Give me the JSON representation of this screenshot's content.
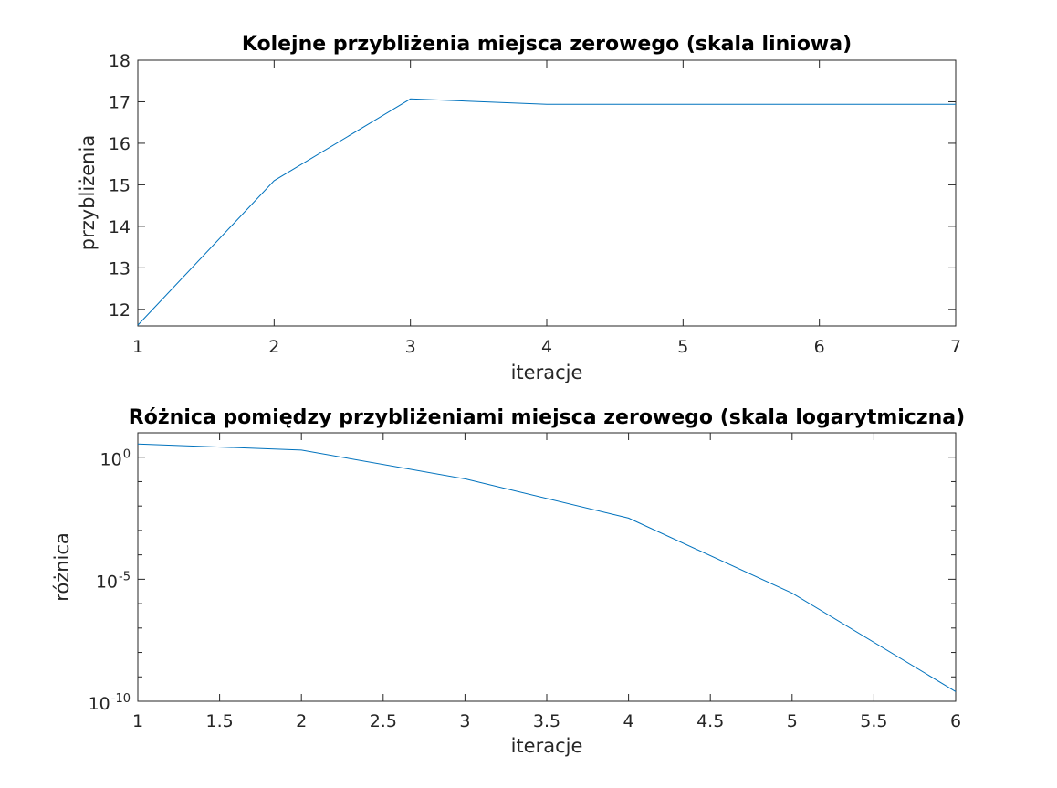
{
  "chart_data": [
    {
      "type": "line",
      "title": "Kolejne przybliżenia miejsca zerowego (skala liniowa)",
      "xlabel": "iteracje",
      "ylabel": "przybliżenia",
      "xlim": [
        1,
        7
      ],
      "ylim": [
        11.6,
        18
      ],
      "yscale": "linear",
      "grid": false,
      "x_ticks": [
        "1",
        "2",
        "3",
        "4",
        "5",
        "6",
        "7"
      ],
      "y_ticks": [
        "12",
        "13",
        "14",
        "15",
        "16",
        "17",
        "18"
      ],
      "line_color": "#0072BD",
      "series": [
        {
          "x": [
            1,
            2,
            3,
            4,
            5,
            6,
            7
          ],
          "y": [
            11.62,
            15.1,
            17.07,
            16.94,
            16.94,
            16.94,
            16.94
          ]
        }
      ]
    },
    {
      "type": "line",
      "title": "Różnica pomiędzy przybliżeniami miejsca zerowego (skala logarytmiczna)",
      "xlabel": "iteracje",
      "ylabel": "różnica",
      "xlim": [
        1,
        6
      ],
      "ylim": [
        1e-10,
        10
      ],
      "yscale": "log",
      "grid": false,
      "x_ticks": [
        "1",
        "1.5",
        "2",
        "2.5",
        "3",
        "3.5",
        "4",
        "4.5",
        "5",
        "5.5",
        "6"
      ],
      "y_ticks": [
        {
          "base": "10",
          "exp": "0"
        },
        {
          "base": "10",
          "exp": "-5"
        },
        {
          "base": "10",
          "exp": "-10"
        }
      ],
      "line_color": "#0072BD",
      "series": [
        {
          "x": [
            1,
            2,
            3,
            4,
            5,
            6
          ],
          "y": [
            3.5,
            1.97,
            0.13,
            0.0032,
            2.7e-06,
            2.5e-10
          ]
        }
      ]
    }
  ]
}
